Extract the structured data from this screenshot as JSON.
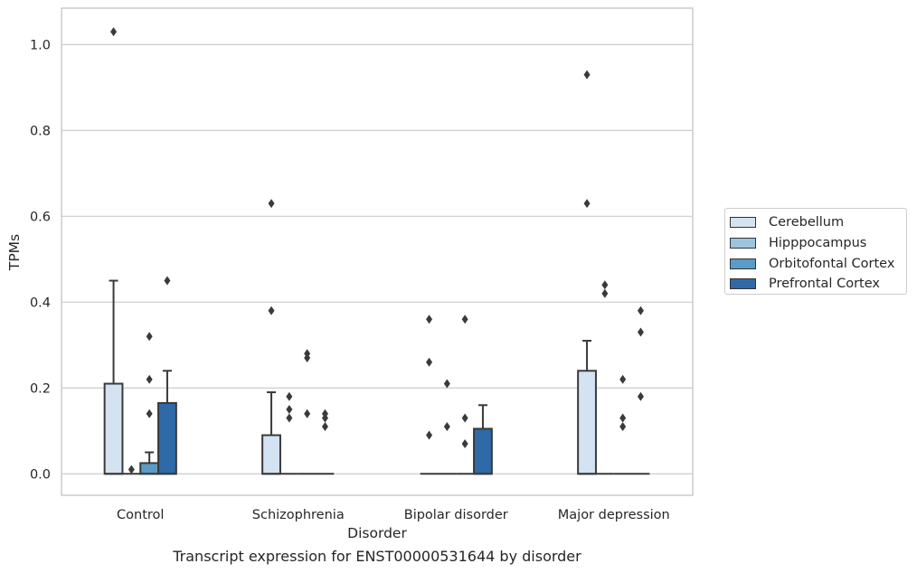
{
  "caption": "Transcript expression for ENST00000531644 by disorder",
  "chart_data": {
    "type": "box",
    "xlabel": "Disorder",
    "ylabel": "TPMs",
    "ylim": [
      -0.05,
      1.085
    ],
    "yticks": [
      0.0,
      0.2,
      0.4,
      0.6,
      0.8,
      1.0
    ],
    "ytick_labels": [
      "0.0",
      "0.2",
      "0.4",
      "0.6",
      "0.8",
      "1.0"
    ],
    "grid": "horizontal",
    "legend_position": "right",
    "categories": [
      "Control",
      "Schizophrenia",
      "Bipolar disorder",
      "Major depression"
    ],
    "series": [
      {
        "name": "Cerebellum",
        "color": "#d3e3f2",
        "boxes": [
          {
            "q1": 0,
            "q3": 0.21,
            "median": 0,
            "whisker_low": 0,
            "whisker_high": 0.45,
            "outliers": [
              1.03
            ]
          },
          {
            "q1": 0,
            "q3": 0.09,
            "median": 0,
            "whisker_low": 0,
            "whisker_high": 0.19,
            "outliers": [
              0.63,
              0.38
            ]
          },
          {
            "q1": 0,
            "q3": 0,
            "median": 0,
            "whisker_low": 0,
            "whisker_high": 0,
            "outliers": [
              0.36,
              0.26,
              0.09
            ]
          },
          {
            "q1": 0,
            "q3": 0.24,
            "median": 0,
            "whisker_low": 0,
            "whisker_high": 0.31,
            "outliers": [
              0.93,
              0.63
            ]
          }
        ]
      },
      {
        "name": "Hipppocampus",
        "color": "#9dc4df",
        "boxes": [
          {
            "q1": 0,
            "q3": 0,
            "median": 0,
            "whisker_low": 0,
            "whisker_high": 0,
            "outliers": [
              0.01
            ]
          },
          {
            "q1": 0,
            "q3": 0,
            "median": 0,
            "whisker_low": 0,
            "whisker_high": 0,
            "outliers": [
              0.18,
              0.15,
              0.13
            ]
          },
          {
            "q1": 0,
            "q3": 0,
            "median": 0,
            "whisker_low": 0,
            "whisker_high": 0,
            "outliers": [
              0.21,
              0.11
            ]
          },
          {
            "q1": 0,
            "q3": 0,
            "median": 0,
            "whisker_low": 0,
            "whisker_high": 0,
            "outliers": [
              0.44,
              0.42
            ]
          }
        ]
      },
      {
        "name": "Orbitofontal Cortex",
        "color": "#5a9bc7",
        "boxes": [
          {
            "q1": 0,
            "q3": 0.025,
            "median": 0,
            "whisker_low": 0,
            "whisker_high": 0.05,
            "outliers": [
              0.32,
              0.22,
              0.14
            ]
          },
          {
            "q1": 0,
            "q3": 0,
            "median": 0,
            "whisker_low": 0,
            "whisker_high": 0,
            "outliers": [
              0.28,
              0.27,
              0.14
            ]
          },
          {
            "q1": 0,
            "q3": 0,
            "median": 0,
            "whisker_low": 0,
            "whisker_high": 0,
            "outliers": [
              0.36,
              0.13,
              0.07
            ]
          },
          {
            "q1": 0,
            "q3": 0,
            "median": 0,
            "whisker_low": 0,
            "whisker_high": 0,
            "outliers": [
              0.22,
              0.13,
              0.11
            ]
          }
        ]
      },
      {
        "name": "Prefrontal Cortex",
        "color": "#2e6aa8",
        "boxes": [
          {
            "q1": 0,
            "q3": 0.165,
            "median": 0,
            "whisker_low": 0,
            "whisker_high": 0.24,
            "outliers": [
              0.45
            ]
          },
          {
            "q1": 0,
            "q3": 0,
            "median": 0,
            "whisker_low": 0,
            "whisker_high": 0,
            "outliers": [
              0.14,
              0.13,
              0.11
            ]
          },
          {
            "q1": 0,
            "q3": 0.105,
            "median": 0,
            "whisker_low": 0,
            "whisker_high": 0.16,
            "outliers": []
          },
          {
            "q1": 0,
            "q3": 0,
            "median": 0,
            "whisker_low": 0,
            "whisker_high": 0,
            "outliers": [
              0.38,
              0.33,
              0.18
            ]
          }
        ]
      }
    ]
  }
}
